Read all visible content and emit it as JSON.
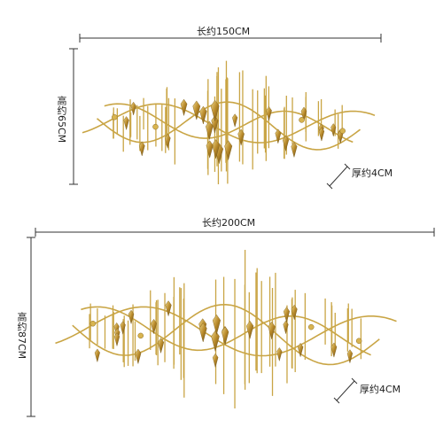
{
  "products": [
    {
      "length": "长约150CM",
      "height": "高约65CM",
      "thickness": "厚约4CM"
    },
    {
      "length": "长约200CM",
      "height": "高约87CM",
      "thickness": "厚约4CM"
    }
  ]
}
